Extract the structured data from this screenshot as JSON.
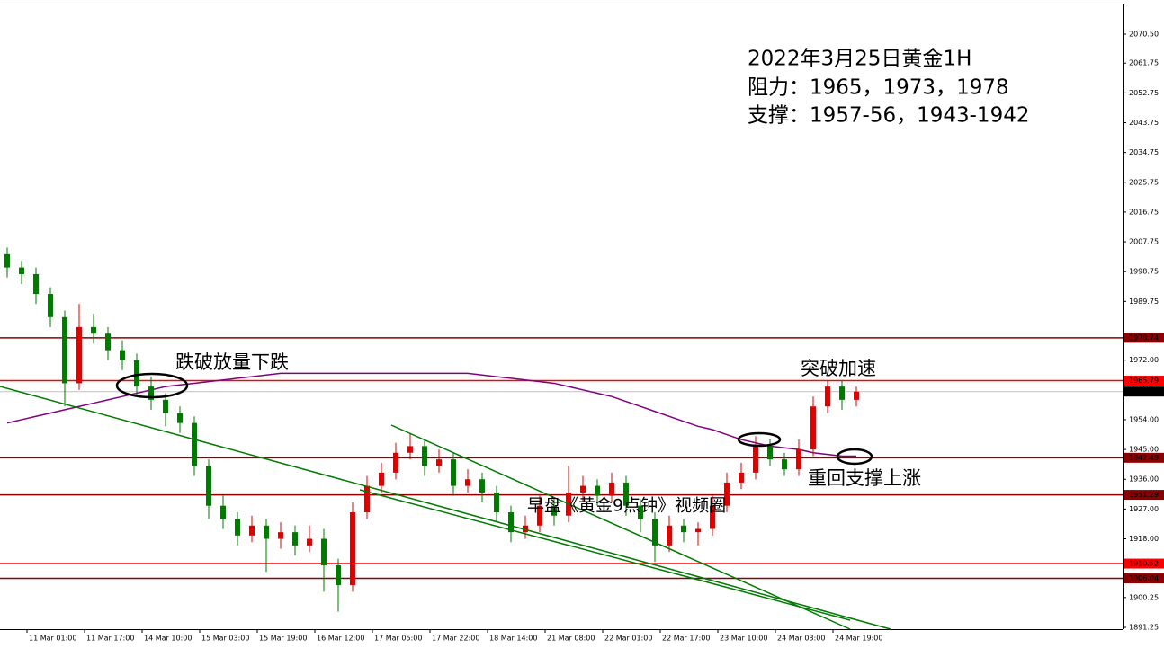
{
  "chart_data": {
    "type": "candlestick",
    "header": [
      "2022年3月25日黄金1H",
      "阻力：1965，1973，1978",
      "支撑：1957-56，1943-1942"
    ],
    "annotations": [
      "跌破放量下跌",
      "突破加速",
      "重回支撑上涨",
      "早盘《黄金9点钟》视频圈"
    ],
    "up_color": "#e00000",
    "down_color": "#007a00",
    "ma_color": "#800080",
    "ylim": [
      1891.25,
      2070.5
    ],
    "yticks": [
      {
        "value": 2070.5,
        "label": "2070.50"
      },
      {
        "value": 2061.75,
        "label": "2061.75"
      },
      {
        "value": 2052.75,
        "label": "2052.75"
      },
      {
        "value": 2043.75,
        "label": "2043.75"
      },
      {
        "value": 2034.75,
        "label": "2034.75"
      },
      {
        "value": 2025.75,
        "label": "2025.75"
      },
      {
        "value": 2016.75,
        "label": "2016.75"
      },
      {
        "value": 2007.75,
        "label": "2007.75"
      },
      {
        "value": 1998.75,
        "label": "1998.75"
      },
      {
        "value": 1989.75,
        "label": "1989.75"
      },
      {
        "value": 1972,
        "label": "1972.00"
      },
      {
        "value": 1954,
        "label": "1954.00"
      },
      {
        "value": 1945,
        "label": "1945.00"
      },
      {
        "value": 1936,
        "label": "1936.00"
      },
      {
        "value": 1927,
        "label": "1927.00"
      },
      {
        "value": 1918,
        "label": "1918.00"
      },
      {
        "value": 1900.25,
        "label": "1900.25"
      },
      {
        "value": 1891.25,
        "label": "1891.25"
      }
    ],
    "levels": [
      {
        "value": 1978.74,
        "color": "#8b0000"
      },
      {
        "value": 1965.79,
        "color": "#ff0000"
      },
      {
        "value": 1962.49,
        "color": "#c0c0c0"
      },
      {
        "value": 1942.49,
        "color": "#8b0000"
      },
      {
        "value": 1931.29,
        "color": "#8b0000"
      },
      {
        "value": 1910.52,
        "color": "#ff0000"
      },
      {
        "value": 1906.04,
        "color": "#8b0000"
      }
    ],
    "x_labels": [
      "11 Mar 01:00",
      "11 Mar 17:00",
      "14 Mar 10:00",
      "15 Mar 03:00",
      "15 Mar 19:00",
      "16 Mar 12:00",
      "17 Mar 05:00",
      "17 Mar 22:00",
      "18 Mar 14:00",
      "21 Mar 08:00",
      "22 Mar 01:00",
      "22 Mar 17:00",
      "23 Mar 10:00",
      "24 Mar 03:00",
      "24 Mar 19:00"
    ],
    "candles": [
      [
        2004,
        2006,
        1997,
        2000
      ],
      [
        2000,
        2002,
        1995,
        1998
      ],
      [
        1998,
        2000,
        1989,
        1992
      ],
      [
        1992,
        1994,
        1982,
        1985
      ],
      [
        1985,
        1987,
        1958,
        1965
      ],
      [
        1965,
        1989,
        1963,
        1982
      ],
      [
        1982,
        1986,
        1977,
        1980
      ],
      [
        1980,
        1982,
        1972,
        1975
      ],
      [
        1975,
        1978,
        1969,
        1972
      ],
      [
        1972,
        1974,
        1961,
        1964
      ],
      [
        1964,
        1967,
        1957,
        1960
      ],
      [
        1960,
        1962,
        1952,
        1956
      ],
      [
        1956,
        1958,
        1950,
        1953
      ],
      [
        1953,
        1955,
        1937,
        1940
      ],
      [
        1940,
        1942,
        1924,
        1928
      ],
      [
        1928,
        1931,
        1921,
        1924
      ],
      [
        1924,
        1926,
        1916,
        1919
      ],
      [
        1919,
        1925,
        1917,
        1922
      ],
      [
        1922,
        1924,
        1908,
        1918
      ],
      [
        1918,
        1923,
        1915,
        1920
      ],
      [
        1920,
        1922,
        1913,
        1916
      ],
      [
        1916,
        1922,
        1914,
        1918
      ],
      [
        1918,
        1921,
        1902,
        1910
      ],
      [
        1910,
        1912,
        1896,
        1904
      ],
      [
        1904,
        1929,
        1902,
        1926
      ],
      [
        1926,
        1937,
        1924,
        1934
      ],
      [
        1934,
        1941,
        1932,
        1938
      ],
      [
        1938,
        1947,
        1936,
        1944
      ],
      [
        1944,
        1950,
        1942,
        1946
      ],
      [
        1946,
        1948,
        1937,
        1940
      ],
      [
        1940,
        1945,
        1938,
        1942
      ],
      [
        1942,
        1944,
        1931,
        1934
      ],
      [
        1934,
        1939,
        1932,
        1936
      ],
      [
        1936,
        1938,
        1929,
        1932
      ],
      [
        1932,
        1934,
        1923,
        1926
      ],
      [
        1926,
        1928,
        1917,
        1920
      ],
      [
        1920,
        1925,
        1918,
        1922
      ],
      [
        1922,
        1931,
        1920,
        1928
      ],
      [
        1928,
        1930,
        1922,
        1925
      ],
      [
        1925,
        1940,
        1923,
        1932
      ],
      [
        1932,
        1937,
        1929,
        1934
      ],
      [
        1934,
        1936,
        1928,
        1931
      ],
      [
        1931,
        1938,
        1929,
        1935
      ],
      [
        1935,
        1937,
        1925,
        1928
      ],
      [
        1928,
        1930,
        1920,
        1924
      ],
      [
        1924,
        1926,
        1911,
        1916
      ],
      [
        1916,
        1925,
        1914,
        1922
      ],
      [
        1922,
        1924,
        1917,
        1920
      ],
      [
        1920,
        1923,
        1916,
        1921
      ],
      [
        1921,
        1931,
        1919,
        1928
      ],
      [
        1928,
        1938,
        1926,
        1935
      ],
      [
        1935,
        1941,
        1933,
        1938
      ],
      [
        1938,
        1949,
        1936,
        1946
      ],
      [
        1946,
        1948,
        1940,
        1942
      ],
      [
        1942,
        1944,
        1937,
        1939
      ],
      [
        1939,
        1948,
        1937,
        1945
      ],
      [
        1945,
        1961,
        1943,
        1958
      ],
      [
        1958,
        1966,
        1956,
        1964
      ],
      [
        1964,
        1966,
        1957,
        1960
      ],
      [
        1960,
        1964,
        1958,
        1962.49
      ]
    ],
    "ma": [
      1953,
      1954,
      1955,
      1956,
      1957,
      1958,
      1959,
      1960,
      1961,
      1962,
      1963,
      1964,
      1964.5,
      1965,
      1965.5,
      1966,
      1966.5,
      1967,
      1967.5,
      1968,
      1968,
      1968,
      1968,
      1968,
      1968,
      1968,
      1968,
      1968,
      1968,
      1968,
      1968,
      1968,
      1968,
      1967.5,
      1967,
      1966.5,
      1966,
      1965.5,
      1965,
      1964,
      1963,
      1962,
      1961,
      1959.5,
      1958,
      1956.5,
      1955,
      1953.5,
      1952,
      1951,
      1949.5,
      1948,
      1947,
      1946,
      1945.5,
      1945,
      1944,
      1943.5,
      1943,
      1943
    ]
  }
}
